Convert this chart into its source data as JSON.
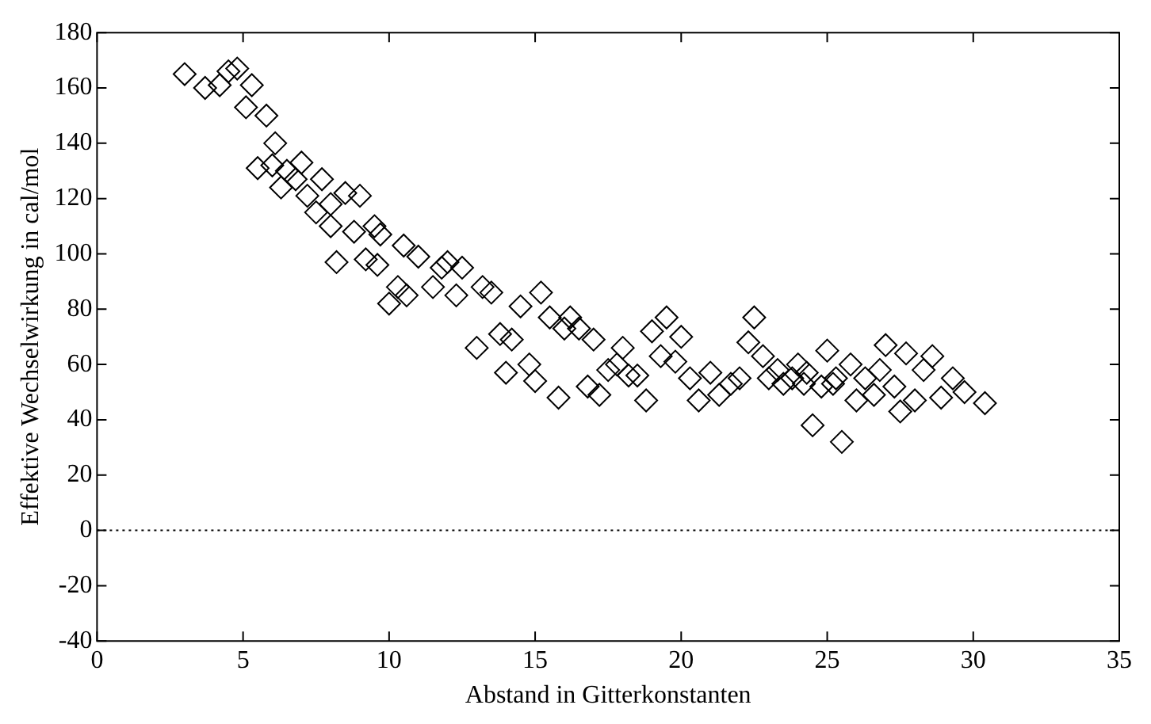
{
  "chart_data": {
    "type": "scatter",
    "xlabel": "Abstand in Gitterkonstanten",
    "ylabel": "Effektive Wechselwirkung in cal/mol",
    "x": [
      3.0,
      3.7,
      4.2,
      4.5,
      4.8,
      5.1,
      5.3,
      5.5,
      5.8,
      6.1,
      6.0,
      6.3,
      6.5,
      6.8,
      7.0,
      7.2,
      7.5,
      7.7,
      8.0,
      8.2,
      8.0,
      8.5,
      8.8,
      9.0,
      9.2,
      9.5,
      9.7,
      9.6,
      10.0,
      10.3,
      10.6,
      10.5,
      11.0,
      11.5,
      11.8,
      12.0,
      12.3,
      12.5,
      13.0,
      13.2,
      13.5,
      13.8,
      14.0,
      14.2,
      14.5,
      14.8,
      15.0,
      15.2,
      15.5,
      15.8,
      16.0,
      16.2,
      16.5,
      16.8,
      17.0,
      17.2,
      17.5,
      17.8,
      18.0,
      18.2,
      18.5,
      18.8,
      19.0,
      19.3,
      19.5,
      19.8,
      20.0,
      20.3,
      20.6,
      21.0,
      21.3,
      21.7,
      22.0,
      22.3,
      22.5,
      22.8,
      23.0,
      23.3,
      23.5,
      23.8,
      24.0,
      24.3,
      24.5,
      24.8,
      25.0,
      25.3,
      25.5,
      25.8,
      26.0,
      26.3,
      26.6,
      27.0,
      27.3,
      27.5,
      27.7,
      28.0,
      28.3,
      28.6,
      28.9,
      29.3,
      29.7,
      30.4,
      25.2,
      26.8,
      24.2
    ],
    "values": [
      165,
      160,
      161,
      166,
      167,
      153,
      161,
      131,
      150,
      140,
      132,
      124,
      130,
      127,
      133,
      121,
      115,
      127,
      118,
      97,
      110,
      122,
      108,
      121,
      98,
      110,
      107,
      96,
      82,
      88,
      85,
      103,
      99,
      88,
      95,
      97,
      85,
      95,
      66,
      88,
      86,
      71,
      57,
      69,
      81,
      60,
      54,
      86,
      77,
      48,
      73,
      77,
      73,
      52,
      69,
      49,
      58,
      60,
      66,
      56,
      56,
      47,
      72,
      63,
      77,
      61,
      70,
      55,
      47,
      57,
      49,
      53,
      55,
      68,
      77,
      63,
      55,
      58,
      53,
      55,
      60,
      57,
      38,
      52,
      65,
      55,
      32,
      60,
      47,
      55,
      49,
      67,
      52,
      43,
      64,
      47,
      58,
      63,
      48,
      55,
      50,
      46,
      53,
      58,
      53
    ],
    "color": "#000000",
    "marker": "diamond",
    "xlim": [
      0,
      35
    ],
    "xticks": [
      0,
      5,
      10,
      15,
      20,
      25,
      30,
      35
    ],
    "ylim": [
      -40,
      180
    ],
    "yticks": [
      -40,
      -20,
      0,
      20,
      40,
      60,
      80,
      100,
      120,
      140,
      160,
      180
    ],
    "grid": false,
    "legend": false,
    "ref_lines": [
      {
        "axis": "y",
        "value": 0,
        "color": "#000000",
        "line_style": "dotted"
      }
    ]
  }
}
